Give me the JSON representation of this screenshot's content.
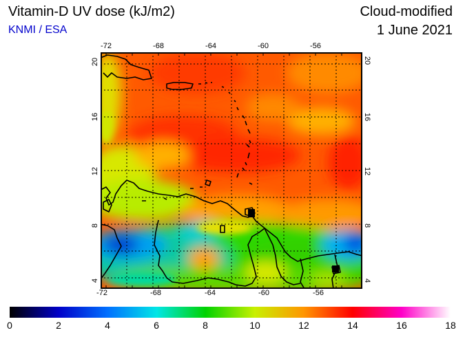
{
  "header": {
    "title": "Vitamin-D UV dose (kJ/m2)",
    "credit": "KNMI / ESA",
    "mode": "Cloud-modified",
    "date": "1 June 2021"
  },
  "map": {
    "lon_ticks": [
      "-72",
      "-68",
      "-64",
      "-60",
      "-56"
    ],
    "lat_ticks": [
      "20",
      "16",
      "12",
      "8",
      "4"
    ],
    "lon_range": [
      -72,
      -52
    ],
    "lat_range": [
      3,
      21
    ]
  },
  "colorbar": {
    "labels": [
      "0",
      "2",
      "4",
      "6",
      "8",
      "10",
      "12",
      "14",
      "16",
      "18"
    ],
    "stops": [
      "#000000",
      "#0000c8",
      "#0070ff",
      "#00e6e6",
      "#00d200",
      "#c8f000",
      "#ff9600",
      "#ff0000",
      "#ff00c8",
      "#ffffff"
    ]
  }
}
